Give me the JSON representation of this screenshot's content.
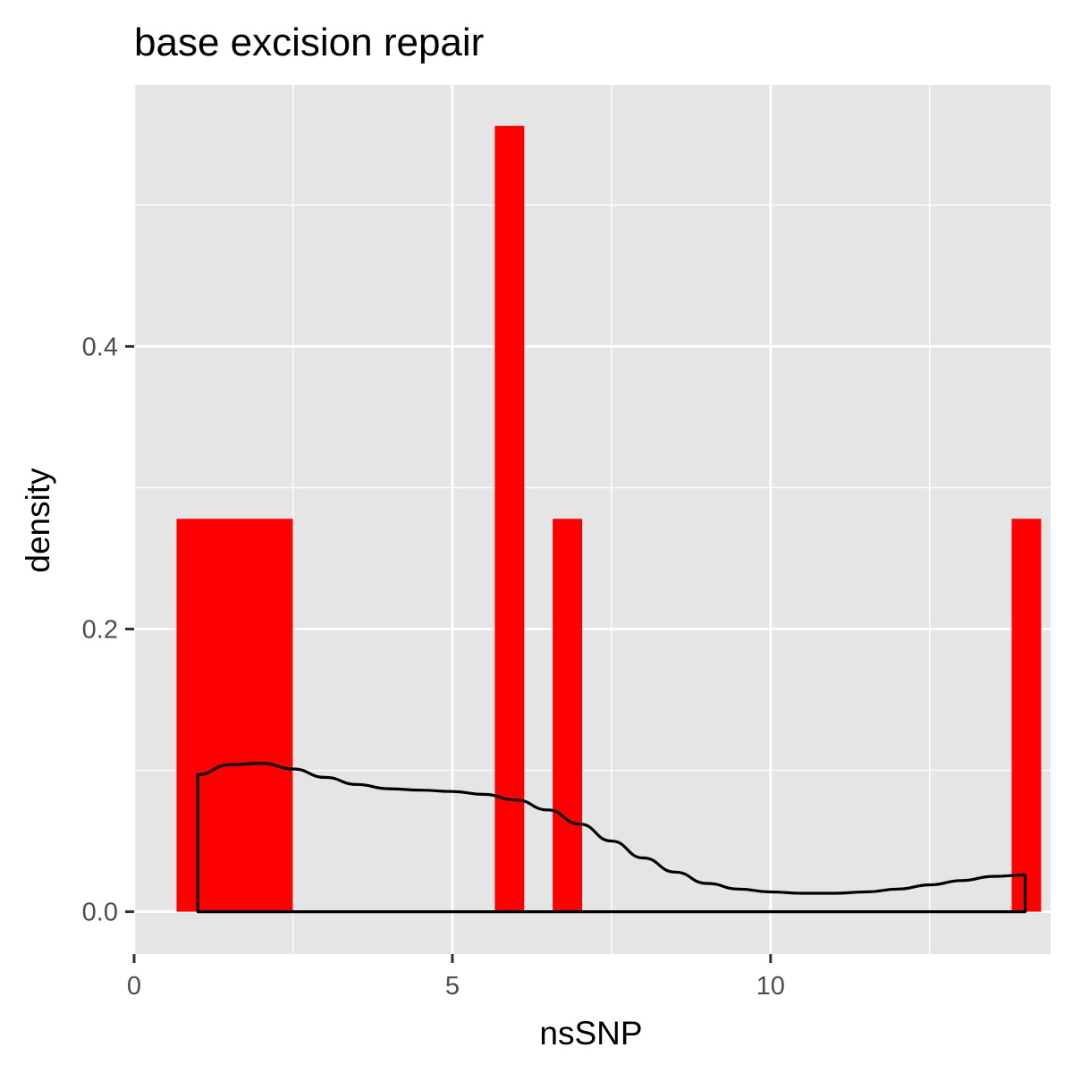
{
  "chart_data": {
    "type": "histogram",
    "title": "base excision repair",
    "xlabel": "nsSNP",
    "ylabel": "density",
    "xlim": [
      0,
      14.4
    ],
    "ylim": [
      -0.03,
      0.585
    ],
    "x_ticks": [
      0,
      5,
      10
    ],
    "x_tick_labels": [
      "0",
      "5",
      "10"
    ],
    "y_ticks": [
      0.0,
      0.2,
      0.4
    ],
    "y_tick_labels": [
      "0.0",
      "0.2",
      "0.4"
    ],
    "x_minor_ticks": [
      2.5,
      7.5,
      12.5
    ],
    "y_minor_ticks": [
      0.1,
      0.3,
      0.5
    ],
    "grid": true,
    "panel_color": "#e5e5e5",
    "grid_color": "#ffffff",
    "bar_color": "#ff0000",
    "bars": [
      {
        "x0": 0.667,
        "x1": 1.121,
        "value": 0.278
      },
      {
        "x0": 1.121,
        "x1": 1.576,
        "value": 0.278
      },
      {
        "x0": 1.576,
        "x1": 2.03,
        "value": 0.278
      },
      {
        "x0": 2.03,
        "x1": 2.485,
        "value": 0.278
      },
      {
        "x0": 5.667,
        "x1": 6.121,
        "value": 0.556
      },
      {
        "x0": 6.576,
        "x1": 7.03,
        "value": 0.278
      },
      {
        "x0": 13.788,
        "x1": 14.242,
        "value": 0.278
      }
    ],
    "density": {
      "color": "#000000",
      "x": [
        1.0,
        1.5,
        2.0,
        2.5,
        3.0,
        3.5,
        4.0,
        4.5,
        5.0,
        5.5,
        6.0,
        6.5,
        7.0,
        7.5,
        8.0,
        8.5,
        9.0,
        9.5,
        10.0,
        10.5,
        11.0,
        11.5,
        12.0,
        12.5,
        13.0,
        13.5,
        14.0
      ],
      "y": [
        0.097,
        0.104,
        0.105,
        0.101,
        0.095,
        0.09,
        0.087,
        0.086,
        0.085,
        0.083,
        0.079,
        0.072,
        0.062,
        0.05,
        0.038,
        0.028,
        0.02,
        0.016,
        0.014,
        0.013,
        0.013,
        0.014,
        0.016,
        0.019,
        0.022,
        0.025,
        0.026
      ]
    }
  }
}
